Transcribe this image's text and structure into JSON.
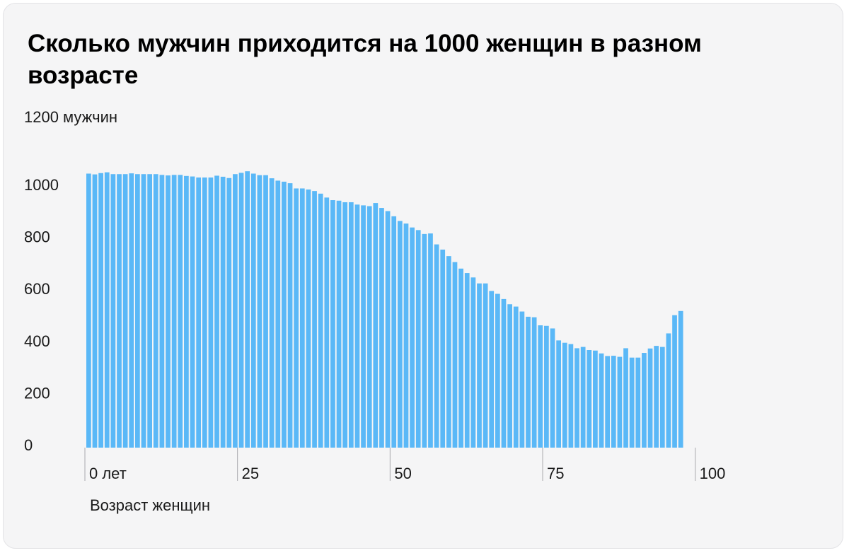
{
  "title": "Сколько мужчин приходится на 1000 женщин в разном возрасте",
  "chart_data": {
    "type": "bar",
    "title": "Сколько мужчин приходится на 1000 женщин в разном возрасте",
    "ylabel": "1200 мужчин",
    "xlabel": "Возраст женщин",
    "ylim": [
      0,
      1200
    ],
    "y_ticks": [
      {
        "value": 0,
        "label": "0"
      },
      {
        "value": 200,
        "label": "200"
      },
      {
        "value": 400,
        "label": "400"
      },
      {
        "value": 600,
        "label": "600"
      },
      {
        "value": 800,
        "label": "800"
      },
      {
        "value": 1000,
        "label": "1000"
      }
    ],
    "x_ticks": [
      {
        "value": 0,
        "label": "0 лет"
      },
      {
        "value": 25,
        "label": "25"
      },
      {
        "value": 50,
        "label": "50"
      },
      {
        "value": 75,
        "label": "75"
      },
      {
        "value": 100,
        "label": "100"
      }
    ],
    "grid": false,
    "color": "#5ab8f7",
    "x": [
      0,
      1,
      2,
      3,
      4,
      5,
      6,
      7,
      8,
      9,
      10,
      11,
      12,
      13,
      14,
      15,
      16,
      17,
      18,
      19,
      20,
      21,
      22,
      23,
      24,
      25,
      26,
      27,
      28,
      29,
      30,
      31,
      32,
      33,
      34,
      35,
      36,
      37,
      38,
      39,
      40,
      41,
      42,
      43,
      44,
      45,
      46,
      47,
      48,
      49,
      50,
      51,
      52,
      53,
      54,
      55,
      56,
      57,
      58,
      59,
      60,
      61,
      62,
      63,
      64,
      65,
      66,
      67,
      68,
      69,
      70,
      71,
      72,
      73,
      74,
      75,
      76,
      77,
      78,
      79,
      80,
      81,
      82,
      83,
      84,
      85,
      86,
      87,
      88,
      89,
      90,
      91,
      92,
      93,
      94,
      95,
      96,
      97,
      98,
      99,
      100
    ],
    "values": [
      1053,
      1050,
      1055,
      1058,
      1051,
      1051,
      1051,
      1054,
      1051,
      1051,
      1051,
      1051,
      1048,
      1046,
      1048,
      1048,
      1044,
      1042,
      1038,
      1038,
      1038,
      1045,
      1041,
      1036,
      1051,
      1056,
      1062,
      1053,
      1047,
      1047,
      1035,
      1026,
      1022,
      1016,
      996,
      996,
      992,
      986,
      976,
      961,
      951,
      949,
      943,
      943,
      934,
      931,
      928,
      940,
      921,
      909,
      889,
      871,
      861,
      846,
      836,
      821,
      823,
      781,
      761,
      736,
      713,
      688,
      671,
      654,
      631,
      631,
      602,
      591,
      571,
      551,
      542,
      523,
      503,
      501,
      470,
      468,
      458,
      412,
      403,
      398,
      382,
      387,
      375,
      373,
      362,
      352,
      353,
      349,
      382,
      346,
      346,
      364,
      381,
      391,
      387,
      439,
      509,
      525,
      0,
      0,
      0
    ]
  }
}
